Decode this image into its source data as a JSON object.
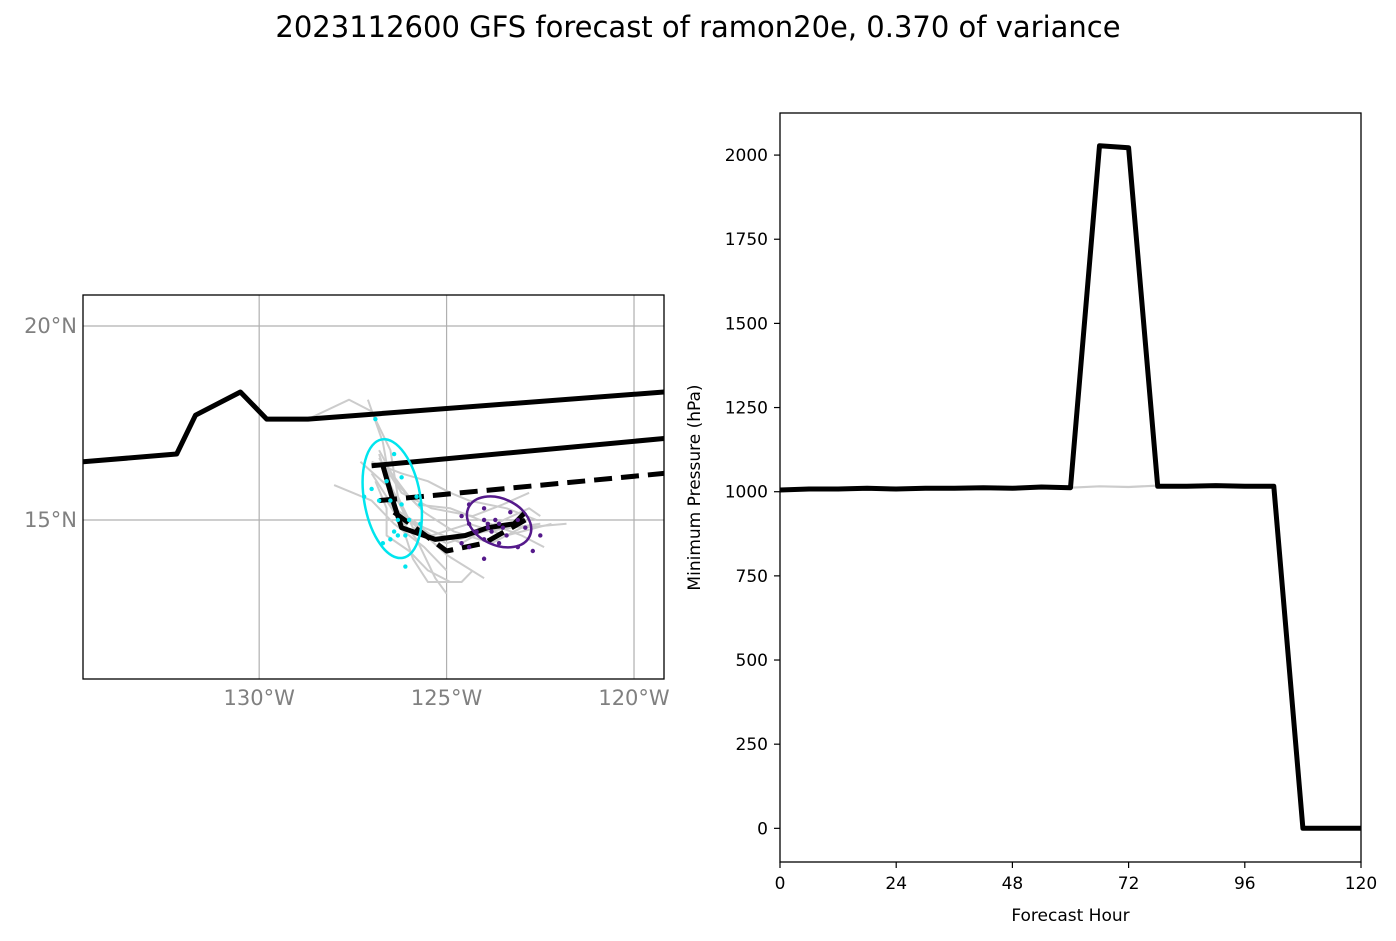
{
  "title": "2023112600 GFS forecast of ramon20e, 0.370 of variance",
  "chart_data": [
    {
      "type": "map",
      "lon_range": [
        -134.7,
        -119.2
      ],
      "lat_range": [
        10.9,
        20.8
      ],
      "lon_ticks": [
        -130,
        -125,
        -120
      ],
      "lon_tick_labels": [
        "130°W",
        "125°W",
        "120°W"
      ],
      "lat_ticks": [
        20,
        15
      ],
      "lat_tick_labels": [
        "20°N",
        "15°N"
      ],
      "grid": true,
      "colors": {
        "track": "#000000",
        "ensemble": "#cccccc",
        "cluster_a": "#00e5ee",
        "cluster_b": "#551a8b",
        "tick_labels": "#808080"
      },
      "tracks": [
        {
          "style": "solid",
          "points": [
            [
              -134.7,
              16.5
            ],
            [
              -132.2,
              16.7
            ],
            [
              -131.7,
              17.7
            ],
            [
              -130.5,
              18.3
            ],
            [
              -129.8,
              17.6
            ],
            [
              -128.7,
              17.6
            ],
            [
              -119.2,
              18.3
            ]
          ]
        },
        {
          "style": "solid",
          "points": [
            [
              -127.0,
              16.4
            ],
            [
              -119.2,
              17.1
            ]
          ]
        },
        {
          "style": "dashed",
          "points": [
            [
              -126.8,
              15.5
            ],
            [
              -119.2,
              16.2
            ]
          ]
        },
        {
          "style": "solid",
          "points": [
            [
              -126.7,
              16.4
            ],
            [
              -126.4,
              15.4
            ],
            [
              -126.2,
              14.8
            ],
            [
              -125.3,
              14.5
            ],
            [
              -124.5,
              14.6
            ],
            [
              -123.9,
              14.8
            ],
            [
              -123.2,
              14.9
            ],
            [
              -122.9,
              15.2
            ]
          ]
        },
        {
          "style": "dashed",
          "points": [
            [
              -126.4,
              15.2
            ],
            [
              -125.0,
              14.2
            ],
            [
              -124.0,
              14.4
            ],
            [
              -122.9,
              15.0
            ]
          ]
        }
      ],
      "ensemble_tracks": [
        [
          [
            -128.7,
            17.6
          ],
          [
            -127.6,
            18.1
          ],
          [
            -127.0,
            17.8
          ],
          [
            -126.5,
            16.8
          ],
          [
            -126.3,
            15.6
          ],
          [
            -125.9,
            14.8
          ],
          [
            -125.0,
            14.4
          ],
          [
            -124.0,
            14.7
          ],
          [
            -122.5,
            14.9
          ]
        ],
        [
          [
            -127.1,
            18.1
          ],
          [
            -126.7,
            17.0
          ],
          [
            -126.5,
            15.9
          ],
          [
            -126.1,
            15.1
          ],
          [
            -125.4,
            14.6
          ],
          [
            -124.4,
            14.9
          ],
          [
            -123.4,
            14.6
          ],
          [
            -122.2,
            14.9
          ]
        ],
        [
          [
            -126.8,
            16.7
          ],
          [
            -126.5,
            15.8
          ],
          [
            -126.0,
            15.0
          ],
          [
            -125.0,
            14.1
          ],
          [
            -124.5,
            13.8
          ],
          [
            -124.0,
            13.5
          ]
        ],
        [
          [
            -127.3,
            16.5
          ],
          [
            -126.6,
            15.9
          ],
          [
            -126.3,
            15.1
          ],
          [
            -125.8,
            14.5
          ],
          [
            -125.3,
            13.5
          ],
          [
            -125.0,
            13.1
          ]
        ],
        [
          [
            -128.0,
            15.9
          ],
          [
            -127.0,
            15.5
          ],
          [
            -126.4,
            14.9
          ],
          [
            -125.6,
            14.3
          ],
          [
            -125.0,
            13.7
          ]
        ],
        [
          [
            -126.7,
            16.5
          ],
          [
            -126.0,
            15.6
          ],
          [
            -125.6,
            15.2
          ],
          [
            -124.8,
            14.7
          ],
          [
            -123.8,
            14.4
          ],
          [
            -123.0,
            14.8
          ],
          [
            -121.8,
            14.9
          ]
        ],
        [
          [
            -126.9,
            16.0
          ],
          [
            -126.6,
            15.3
          ],
          [
            -126.6,
            14.6
          ],
          [
            -126.0,
            14.2
          ],
          [
            -125.5,
            13.7
          ],
          [
            -124.9,
            13.4
          ]
        ],
        [
          [
            -127.0,
            16.5
          ],
          [
            -126.2,
            16.2
          ],
          [
            -125.5,
            16.0
          ],
          [
            -124.9,
            15.7
          ],
          [
            -124.4,
            15.5
          ],
          [
            -123.4,
            15.3
          ],
          [
            -122.6,
            15.0
          ]
        ],
        [
          [
            -126.8,
            16.8
          ],
          [
            -126.3,
            15.9
          ],
          [
            -125.8,
            15.4
          ],
          [
            -124.9,
            15.3
          ],
          [
            -124.1,
            15.0
          ],
          [
            -123.0,
            14.6
          ],
          [
            -122.4,
            14.3
          ]
        ],
        [
          [
            -126.6,
            15.5
          ],
          [
            -126.2,
            14.9
          ],
          [
            -125.9,
            14.0
          ],
          [
            -125.5,
            13.4
          ],
          [
            -124.6,
            13.4
          ],
          [
            -124.3,
            13.7
          ]
        ],
        [
          [
            -127.0,
            16.2
          ],
          [
            -126.4,
            15.3
          ],
          [
            -125.6,
            14.8
          ],
          [
            -124.6,
            14.4
          ],
          [
            -123.7,
            14.9
          ],
          [
            -122.8,
            15.3
          ],
          [
            -122.5,
            15.1
          ]
        ],
        [
          [
            -126.8,
            16.6
          ],
          [
            -126.2,
            15.7
          ],
          [
            -125.4,
            15.3
          ],
          [
            -124.3,
            15.1
          ],
          [
            -123.5,
            15.4
          ],
          [
            -122.8,
            15.7
          ]
        ]
      ],
      "ellipses": [
        {
          "color": "cluster_a",
          "center": [
            -126.45,
            15.55
          ],
          "rx_deg": 0.75,
          "ry_deg": 1.55,
          "rotation_deg": -10
        },
        {
          "color": "cluster_b",
          "center": [
            -123.6,
            14.95
          ],
          "rx_deg": 0.9,
          "ry_deg": 0.6,
          "rotation_deg": 25
        }
      ],
      "points_a": [
        [
          -126.9,
          17.6
        ],
        [
          -126.4,
          16.7
        ],
        [
          -126.2,
          16.1
        ],
        [
          -126.6,
          16.0
        ],
        [
          -127.0,
          15.8
        ],
        [
          -127.2,
          15.6
        ],
        [
          -126.8,
          15.5
        ],
        [
          -126.5,
          15.5
        ],
        [
          -126.2,
          15.4
        ],
        [
          -125.7,
          15.4
        ],
        [
          -126.3,
          15.0
        ],
        [
          -126.0,
          15.0
        ],
        [
          -125.7,
          14.9
        ],
        [
          -126.4,
          14.7
        ],
        [
          -126.3,
          14.6
        ],
        [
          -126.1,
          14.6
        ],
        [
          -126.7,
          14.4
        ],
        [
          -126.5,
          14.5
        ],
        [
          -126.1,
          13.8
        ],
        [
          -125.8,
          15.6
        ]
      ],
      "points_b": [
        [
          -124.4,
          15.4
        ],
        [
          -124.0,
          15.3
        ],
        [
          -123.3,
          15.2
        ],
        [
          -124.6,
          15.1
        ],
        [
          -124.0,
          15.0
        ],
        [
          -123.7,
          15.0
        ],
        [
          -123.1,
          15.0
        ],
        [
          -124.4,
          14.9
        ],
        [
          -123.9,
          14.9
        ],
        [
          -123.5,
          14.8
        ],
        [
          -122.9,
          14.8
        ],
        [
          -124.2,
          14.7
        ],
        [
          -123.8,
          14.7
        ],
        [
          -123.4,
          14.6
        ],
        [
          -124.6,
          14.4
        ],
        [
          -124.0,
          14.5
        ],
        [
          -123.6,
          14.4
        ],
        [
          -122.5,
          14.6
        ],
        [
          -124.4,
          14.3
        ],
        [
          -123.1,
          14.3
        ],
        [
          -124.0,
          14.0
        ],
        [
          -122.7,
          14.2
        ],
        [
          -123.9,
          14.8
        ],
        [
          -123.6,
          14.9
        ]
      ]
    },
    {
      "type": "line",
      "xlabel": "Forecast Hour",
      "ylabel": "Minimum Pressure (hPa)",
      "xlim": [
        0,
        120
      ],
      "ylim": [
        -100,
        2125
      ],
      "x_ticks": [
        0,
        24,
        48,
        72,
        96,
        120
      ],
      "y_ticks": [
        0,
        250,
        500,
        750,
        1000,
        1250,
        1500,
        1750,
        2000
      ],
      "grid": false,
      "series": [
        {
          "color": "#000000",
          "x": [
            0,
            6,
            12,
            18,
            24,
            30,
            36,
            42,
            48,
            54,
            60,
            66,
            72,
            78,
            84,
            90,
            96,
            102,
            108,
            114,
            120
          ],
          "values": [
            1005,
            1008,
            1008,
            1010,
            1008,
            1010,
            1010,
            1012,
            1010,
            1014,
            1012,
            2028,
            2022,
            1016,
            1016,
            1018,
            1016,
            1016,
            0,
            0,
            0
          ]
        },
        {
          "color": "#cccccc",
          "x": [
            0,
            6,
            12,
            18,
            24,
            30,
            36,
            42,
            48,
            54,
            60,
            66,
            72,
            78,
            84,
            90,
            96,
            102
          ],
          "values": [
            1006,
            1008,
            1008,
            1010,
            1008,
            1010,
            1010,
            1012,
            1010,
            1012,
            1012,
            1016,
            1014,
            1018,
            1016,
            1016,
            1016,
            1016
          ]
        }
      ]
    }
  ]
}
